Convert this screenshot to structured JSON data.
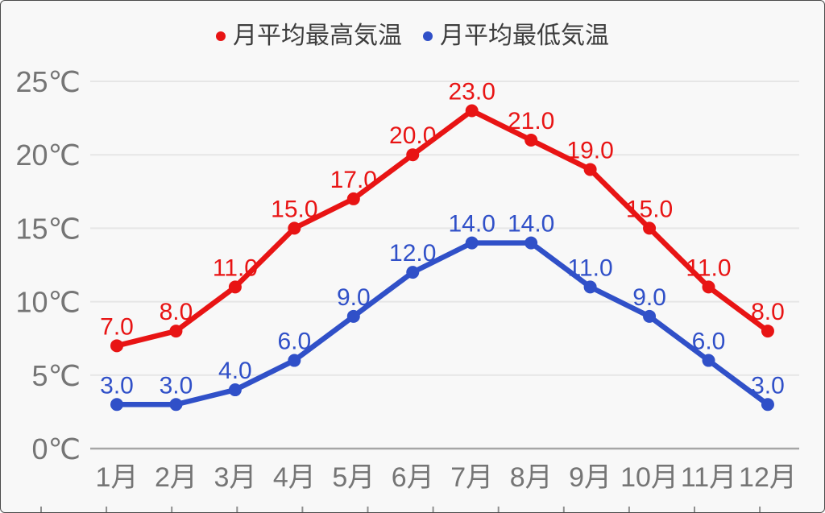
{
  "page": {
    "background_color": "#f8f8f8",
    "border_color": "#4b4b4b"
  },
  "chart_data": {
    "type": "line",
    "title": "",
    "xlabel": "",
    "ylabel": "",
    "categories": [
      "1月",
      "2月",
      "3月",
      "4月",
      "5月",
      "6月",
      "7月",
      "8月",
      "9月",
      "10月",
      "11月",
      "12月"
    ],
    "series": [
      {
        "name": "月平均最高気温",
        "color": "#e81414",
        "values": [
          7,
          8,
          11,
          15,
          17,
          20,
          23,
          21,
          19,
          15,
          11,
          8
        ],
        "point_labels": [
          "7.0",
          "8.0",
          "11.0",
          "15.0",
          "17.0",
          "20.0",
          "23.0",
          "21.0",
          "19.0",
          "15.0",
          "11.0",
          "8.0"
        ]
      },
      {
        "name": "月平均最低気温",
        "color": "#3050c8",
        "values": [
          3,
          3,
          4,
          6,
          9,
          12,
          14,
          14,
          11,
          9,
          6,
          3
        ],
        "point_labels": [
          "3.0",
          "3.0",
          "4.0",
          "6.0",
          "9.0",
          "12.0",
          "14.0",
          "14.0",
          "11.0",
          "9.0",
          "6.0",
          "3.0"
        ]
      }
    ],
    "y_ticks": [
      {
        "value": 0,
        "label": "0℃"
      },
      {
        "value": 5,
        "label": "5℃"
      },
      {
        "value": 10,
        "label": "10℃"
      },
      {
        "value": 15,
        "label": "15℃"
      },
      {
        "value": 20,
        "label": "20℃"
      },
      {
        "value": 25,
        "label": "25℃"
      }
    ],
    "ylim": [
      0,
      25
    ],
    "grid": true,
    "legend_position": "top",
    "axis_text_color": "#757575",
    "gridline_color": "#e6e6e6",
    "baseline_color": "#a6a6a6"
  }
}
